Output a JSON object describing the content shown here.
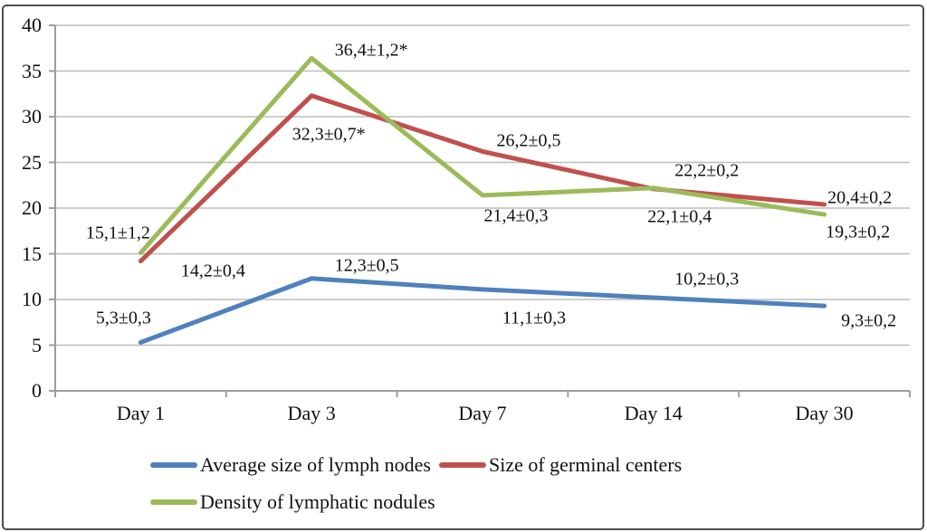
{
  "chart_data": {
    "type": "line",
    "title": "",
    "xlabel": "",
    "ylabel": "",
    "categories": [
      "Day 1",
      "Day 3",
      "Day 7",
      "Day 14",
      "Day 30"
    ],
    "series": [
      {
        "name": "Average size of lymph nodes",
        "color": "#4F81BD",
        "values": [
          5.3,
          12.3,
          11.1,
          10.2,
          9.3
        ],
        "point_labels": [
          "5,3±0,3",
          "12,3±0,5",
          "11,1±0,3",
          "10,2±0,3",
          "9,3±0,2"
        ],
        "label_offsets": [
          [
            -19,
            -26
          ],
          [
            61,
            -14
          ],
          [
            57,
            32
          ],
          [
            59,
            -20
          ],
          [
            49,
            17
          ]
        ]
      },
      {
        "name": "Size of germinal centers",
        "color": "#C0504D",
        "values": [
          14.2,
          32.3,
          26.2,
          22.1,
          20.4
        ],
        "point_labels": [
          "14,2±0,4",
          "32,3±0,7*",
          "26,2±0,5",
          "22,1±0,4",
          "20,4±0,2"
        ],
        "label_offsets": [
          [
            80,
            11
          ],
          [
            19,
            43
          ],
          [
            51,
            -11
          ],
          [
            29,
            31
          ],
          [
            39,
            -7
          ]
        ]
      },
      {
        "name": "Density of lymphatic nodules",
        "color": "#9BBB59",
        "values": [
          15.1,
          36.4,
          21.4,
          22.2,
          19.3
        ],
        "point_labels": [
          "15,1±1,2",
          "36,4±1,2*",
          "21,4±0,3",
          "22,2±0,2",
          "19,3±0,2"
        ],
        "label_offsets": [
          [
            -25,
            -21
          ],
          [
            66,
            -8
          ],
          [
            37,
            23
          ],
          [
            59,
            -19
          ],
          [
            37,
            20
          ]
        ]
      }
    ],
    "ylim": [
      0,
      40
    ],
    "ytick_step": 5,
    "ytick_labels": [
      "0",
      "5",
      "10",
      "15",
      "20",
      "25",
      "30",
      "35",
      "40"
    ],
    "grid": "horizontal",
    "legend_position": "bottom",
    "colors": {
      "gridline": "#bdbdbd",
      "axis": "#9e9e9e",
      "text": "#111111",
      "background": "#ffffff",
      "border": "#4f4f4f"
    }
  }
}
